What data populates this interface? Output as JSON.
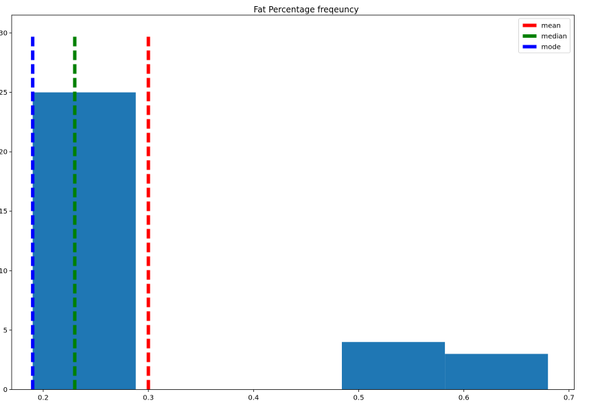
{
  "chart_data": {
    "type": "bar",
    "title": "Fat Percentage freqeuncy",
    "xlabel": "",
    "ylabel": "",
    "xlim": [
      0.17,
      0.705
    ],
    "ylim": [
      0,
      31.5
    ],
    "xticks": [
      "0.2",
      "0.3",
      "0.4",
      "0.5",
      "0.6",
      "0.7"
    ],
    "yticks": [
      "0",
      "5",
      "10",
      "15",
      "20",
      "25",
      "30"
    ],
    "bar_color": "#1f77b4",
    "bins": [
      {
        "start": 0.19,
        "end": 0.288,
        "count": 25
      },
      {
        "start": 0.288,
        "end": 0.386,
        "count": 0
      },
      {
        "start": 0.386,
        "end": 0.484,
        "count": 0
      },
      {
        "start": 0.484,
        "end": 0.582,
        "count": 4
      },
      {
        "start": 0.582,
        "end": 0.68,
        "count": 3
      }
    ],
    "vlines": [
      {
        "name": "mean",
        "x": 0.3,
        "color": "#ff0000"
      },
      {
        "name": "median",
        "x": 0.23,
        "color": "#008000"
      },
      {
        "name": "mode",
        "x": 0.19,
        "color": "#0000ff"
      }
    ],
    "vline_top": 30,
    "legend_position": "upper right",
    "grid": false
  }
}
